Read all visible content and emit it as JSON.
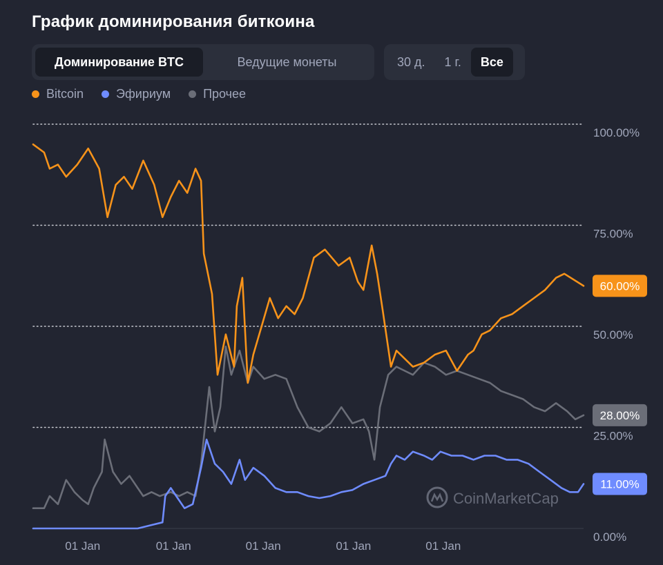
{
  "header": {
    "title": "График доминирования биткоина"
  },
  "view_tabs": [
    {
      "label": "Доминирование BTC",
      "active": true
    },
    {
      "label": "Ведущие монеты",
      "active": false
    }
  ],
  "range_tabs": [
    {
      "label": "30 д.",
      "active": false
    },
    {
      "label": "1 г.",
      "active": false
    },
    {
      "label": "Все",
      "active": true
    }
  ],
  "watermark": "CoinMarketCap",
  "colors": {
    "bitcoin": "#f7931a",
    "ethereum": "#6f8cff",
    "other": "#6b6e78",
    "grid": "#e5e7ee",
    "text_muted": "#a1a7bb"
  },
  "chart_data": {
    "type": "line",
    "title": "",
    "ylim": [
      0,
      100
    ],
    "y_ticks": [
      "100.00%",
      "75.00%",
      "50.00%",
      "25.00%",
      "0.00%"
    ],
    "y_tick_values": [
      100,
      75,
      50,
      25,
      0
    ],
    "x_tick_labels": [
      "01 Jan",
      "01 Jan",
      "01 Jan",
      "01 Jan",
      "01 Jan"
    ],
    "x_tick_positions": [
      0.09,
      0.255,
      0.418,
      0.582,
      0.745
    ],
    "grid": "horizontal dotted",
    "legend_placement": "top-left",
    "series": [
      {
        "name": "Bitcoin",
        "color_key": "bitcoin",
        "last_label": "60.00%",
        "points": [
          [
            0,
            95
          ],
          [
            0.02,
            93
          ],
          [
            0.03,
            89
          ],
          [
            0.045,
            90
          ],
          [
            0.06,
            87
          ],
          [
            0.08,
            90
          ],
          [
            0.1,
            94
          ],
          [
            0.12,
            89
          ],
          [
            0.135,
            77
          ],
          [
            0.15,
            85
          ],
          [
            0.165,
            87
          ],
          [
            0.18,
            84
          ],
          [
            0.2,
            91
          ],
          [
            0.22,
            85
          ],
          [
            0.235,
            77
          ],
          [
            0.25,
            82
          ],
          [
            0.265,
            86
          ],
          [
            0.28,
            83
          ],
          [
            0.295,
            89
          ],
          [
            0.305,
            86
          ],
          [
            0.31,
            68
          ],
          [
            0.325,
            58
          ],
          [
            0.335,
            38
          ],
          [
            0.35,
            48
          ],
          [
            0.365,
            40
          ],
          [
            0.37,
            55
          ],
          [
            0.38,
            62
          ],
          [
            0.39,
            36
          ],
          [
            0.4,
            43
          ],
          [
            0.415,
            50
          ],
          [
            0.43,
            57
          ],
          [
            0.445,
            52
          ],
          [
            0.46,
            55
          ],
          [
            0.475,
            53
          ],
          [
            0.49,
            57
          ],
          [
            0.51,
            67
          ],
          [
            0.53,
            69
          ],
          [
            0.555,
            65
          ],
          [
            0.575,
            67
          ],
          [
            0.59,
            61
          ],
          [
            0.6,
            59
          ],
          [
            0.615,
            70
          ],
          [
            0.625,
            63
          ],
          [
            0.635,
            54
          ],
          [
            0.65,
            40
          ],
          [
            0.66,
            44
          ],
          [
            0.675,
            42
          ],
          [
            0.69,
            40
          ],
          [
            0.71,
            41
          ],
          [
            0.73,
            43
          ],
          [
            0.75,
            44
          ],
          [
            0.77,
            39
          ],
          [
            0.79,
            43
          ],
          [
            0.8,
            44
          ],
          [
            0.815,
            48
          ],
          [
            0.83,
            49
          ],
          [
            0.85,
            52
          ],
          [
            0.87,
            53
          ],
          [
            0.89,
            55
          ],
          [
            0.91,
            57
          ],
          [
            0.93,
            59
          ],
          [
            0.95,
            62
          ],
          [
            0.965,
            63
          ],
          [
            1.0,
            60
          ]
        ]
      },
      {
        "name": "Эфириум",
        "color_key": "ethereum",
        "last_label": "11.00%",
        "points": [
          [
            0,
            0
          ],
          [
            0.19,
            0
          ],
          [
            0.22,
            1
          ],
          [
            0.235,
            1.5
          ],
          [
            0.24,
            8
          ],
          [
            0.25,
            10
          ],
          [
            0.26,
            8
          ],
          [
            0.275,
            5
          ],
          [
            0.29,
            6
          ],
          [
            0.305,
            15
          ],
          [
            0.315,
            22
          ],
          [
            0.33,
            16
          ],
          [
            0.345,
            14
          ],
          [
            0.36,
            11
          ],
          [
            0.375,
            17
          ],
          [
            0.385,
            12
          ],
          [
            0.4,
            15
          ],
          [
            0.42,
            13
          ],
          [
            0.44,
            10
          ],
          [
            0.46,
            9
          ],
          [
            0.48,
            9
          ],
          [
            0.5,
            8
          ],
          [
            0.52,
            7.5
          ],
          [
            0.54,
            8
          ],
          [
            0.56,
            9
          ],
          [
            0.58,
            9.5
          ],
          [
            0.6,
            11
          ],
          [
            0.62,
            12
          ],
          [
            0.64,
            13
          ],
          [
            0.65,
            16
          ],
          [
            0.66,
            18
          ],
          [
            0.675,
            17
          ],
          [
            0.69,
            19
          ],
          [
            0.71,
            18
          ],
          [
            0.725,
            17
          ],
          [
            0.74,
            19
          ],
          [
            0.76,
            18
          ],
          [
            0.78,
            18
          ],
          [
            0.8,
            17
          ],
          [
            0.82,
            18
          ],
          [
            0.84,
            18
          ],
          [
            0.86,
            17
          ],
          [
            0.88,
            17
          ],
          [
            0.9,
            16
          ],
          [
            0.92,
            14
          ],
          [
            0.94,
            12
          ],
          [
            0.96,
            10
          ],
          [
            0.975,
            9
          ],
          [
            0.99,
            9
          ],
          [
            1.0,
            11
          ]
        ]
      },
      {
        "name": "Прочее",
        "color_key": "other",
        "last_label": "28.00%",
        "points": [
          [
            0,
            5
          ],
          [
            0.02,
            5
          ],
          [
            0.03,
            8
          ],
          [
            0.045,
            6
          ],
          [
            0.06,
            12
          ],
          [
            0.075,
            9
          ],
          [
            0.09,
            7
          ],
          [
            0.1,
            6
          ],
          [
            0.11,
            10
          ],
          [
            0.125,
            14
          ],
          [
            0.13,
            22
          ],
          [
            0.145,
            14
          ],
          [
            0.16,
            11
          ],
          [
            0.175,
            13
          ],
          [
            0.19,
            10
          ],
          [
            0.2,
            8
          ],
          [
            0.215,
            9
          ],
          [
            0.23,
            8
          ],
          [
            0.25,
            9
          ],
          [
            0.265,
            8
          ],
          [
            0.28,
            9
          ],
          [
            0.295,
            8
          ],
          [
            0.305,
            16
          ],
          [
            0.32,
            35
          ],
          [
            0.33,
            24
          ],
          [
            0.34,
            30
          ],
          [
            0.35,
            45
          ],
          [
            0.36,
            38
          ],
          [
            0.375,
            44
          ],
          [
            0.39,
            36
          ],
          [
            0.4,
            40
          ],
          [
            0.42,
            37
          ],
          [
            0.44,
            38
          ],
          [
            0.46,
            37
          ],
          [
            0.48,
            30
          ],
          [
            0.5,
            25
          ],
          [
            0.52,
            24
          ],
          [
            0.54,
            26
          ],
          [
            0.56,
            30
          ],
          [
            0.58,
            26
          ],
          [
            0.6,
            27
          ],
          [
            0.61,
            24
          ],
          [
            0.62,
            17
          ],
          [
            0.63,
            30
          ],
          [
            0.645,
            38
          ],
          [
            0.66,
            40
          ],
          [
            0.675,
            39
          ],
          [
            0.69,
            38
          ],
          [
            0.71,
            41
          ],
          [
            0.73,
            40
          ],
          [
            0.75,
            38
          ],
          [
            0.77,
            39
          ],
          [
            0.79,
            38
          ],
          [
            0.81,
            37
          ],
          [
            0.83,
            36
          ],
          [
            0.85,
            34
          ],
          [
            0.87,
            33
          ],
          [
            0.89,
            32
          ],
          [
            0.91,
            30
          ],
          [
            0.93,
            29
          ],
          [
            0.95,
            31
          ],
          [
            0.97,
            29
          ],
          [
            0.985,
            27
          ],
          [
            1.0,
            28
          ]
        ]
      }
    ]
  }
}
